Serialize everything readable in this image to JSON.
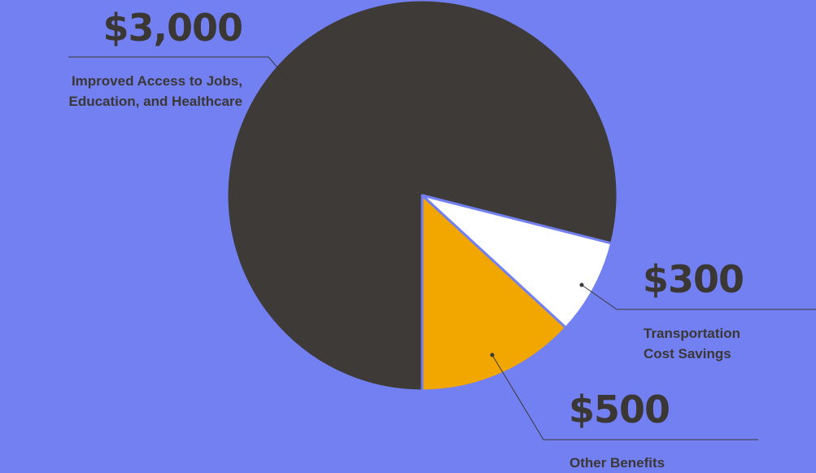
{
  "colors": {
    "background": "#7380f2",
    "ink": "#3b3734",
    "slice_improved_access": "#3e3a37",
    "slice_transport": "#ffffff",
    "slice_other": "#f2a600",
    "separator": "#7380f2"
  },
  "chart_data": {
    "type": "pie",
    "title": "",
    "total": 3800,
    "slices": [
      {
        "key": "improved",
        "value": 3000,
        "value_label": "$3,000",
        "label_lines": [
          "Improved Access to Jobs,",
          "Education, and Healthcare"
        ],
        "color": "#3e3a37"
      },
      {
        "key": "transport",
        "value": 300,
        "value_label": "$300",
        "label_lines": [
          "Transportation",
          "Cost Savings"
        ],
        "color": "#ffffff"
      },
      {
        "key": "other",
        "value": 500,
        "value_label": "$500",
        "label_lines": [
          "Other Benefits"
        ],
        "color": "#f2a600"
      }
    ],
    "legend": "none",
    "start_direction": "down",
    "direction": "clockwise"
  }
}
